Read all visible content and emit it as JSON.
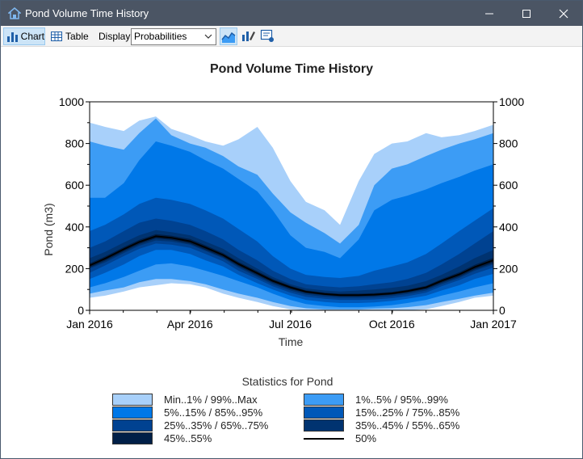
{
  "window": {
    "title": "Pond Volume Time History"
  },
  "toolbar": {
    "chart_label": "Chart",
    "table_label": "Table",
    "display_label": "Display:",
    "display_value": "Probabilities"
  },
  "chart_data": {
    "type": "area",
    "title": "Pond Volume Time History",
    "xlabel": "Time",
    "ylabel": "Pond (m3)",
    "ylim": [
      0,
      1000
    ],
    "yticks": [
      0,
      200,
      400,
      600,
      800,
      1000
    ],
    "ytick_labels": [
      "0",
      "200",
      "400",
      "600",
      "800",
      "1000"
    ],
    "xlim": [
      "2016-01-01",
      "2017-01-01"
    ],
    "xtick_dates": [
      "2016-01-01",
      "2016-04-01",
      "2016-07-01",
      "2016-10-01",
      "2017-01-01"
    ],
    "xtick_labels": [
      "Jan 2016",
      "Apr 2016",
      "Jul 2016",
      "Oct 2016",
      "Jan 2017"
    ],
    "grid": false,
    "x": [
      "2016-01-01",
      "2016-01-15",
      "2016-02-01",
      "2016-02-15",
      "2016-03-01",
      "2016-03-15",
      "2016-04-01",
      "2016-04-15",
      "2016-05-01",
      "2016-05-15",
      "2016-06-01",
      "2016-06-15",
      "2016-07-01",
      "2016-07-15",
      "2016-08-01",
      "2016-08-15",
      "2016-09-01",
      "2016-09-15",
      "2016-10-01",
      "2016-10-15",
      "2016-11-01",
      "2016-11-15",
      "2016-12-01",
      "2016-12-15",
      "2017-01-01"
    ],
    "bands": [
      {
        "name": "Min..1% / 99%..Max",
        "color": "#a8d0fa",
        "low": [
          60,
          70,
          90,
          110,
          120,
          130,
          125,
          110,
          80,
          60,
          40,
          20,
          5,
          0,
          0,
          0,
          0,
          0,
          0,
          0,
          5,
          20,
          40,
          60,
          70
        ],
        "high": [
          900,
          880,
          860,
          910,
          930,
          870,
          840,
          810,
          790,
          820,
          880,
          780,
          620,
          520,
          480,
          410,
          620,
          750,
          800,
          810,
          850,
          830,
          840,
          860,
          890
        ]
      },
      {
        "name": "1%..5% / 95%..99%",
        "color": "#3c9cf5",
        "low": [
          80,
          95,
          110,
          135,
          150,
          150,
          140,
          125,
          100,
          80,
          60,
          40,
          20,
          10,
          5,
          5,
          5,
          8,
          10,
          15,
          25,
          40,
          55,
          70,
          85
        ],
        "high": [
          810,
          790,
          770,
          850,
          920,
          840,
          800,
          780,
          740,
          690,
          650,
          560,
          470,
          420,
          370,
          320,
          410,
          600,
          680,
          700,
          740,
          770,
          800,
          820,
          850
        ]
      },
      {
        "name": "5%..15% / 85%..95%",
        "color": "#0078e8",
        "low": [
          110,
          130,
          160,
          190,
          220,
          225,
          210,
          190,
          165,
          140,
          110,
          80,
          50,
          30,
          20,
          15,
          15,
          18,
          25,
          35,
          50,
          70,
          90,
          110,
          130
        ],
        "high": [
          540,
          540,
          610,
          720,
          810,
          790,
          760,
          720,
          680,
          630,
          570,
          480,
          360,
          300,
          280,
          250,
          340,
          480,
          530,
          550,
          580,
          610,
          640,
          670,
          700
        ]
      },
      {
        "name": "15%..25% / 75%..85%",
        "color": "#0058b8",
        "low": [
          150,
          180,
          220,
          260,
          290,
          290,
          270,
          240,
          210,
          170,
          130,
          100,
          70,
          50,
          40,
          35,
          35,
          38,
          45,
          55,
          70,
          95,
          120,
          150,
          175
        ],
        "high": [
          380,
          410,
          460,
          510,
          540,
          530,
          510,
          480,
          440,
          390,
          330,
          260,
          200,
          170,
          160,
          155,
          165,
          190,
          210,
          230,
          270,
          320,
          380,
          430,
          490
        ]
      },
      {
        "name": "25%..35% / 65%..75%",
        "color": "#004291",
        "low": [
          180,
          215,
          260,
          295,
          320,
          315,
          300,
          270,
          235,
          190,
          150,
          115,
          85,
          65,
          55,
          50,
          50,
          52,
          58,
          68,
          85,
          115,
          145,
          175,
          205
        ],
        "high": [
          300,
          330,
          380,
          420,
          440,
          430,
          410,
          380,
          340,
          290,
          240,
          190,
          150,
          125,
          115,
          110,
          115,
          125,
          135,
          150,
          180,
          220,
          270,
          320,
          380
        ]
      },
      {
        "name": "35%..45% / 55%..65%",
        "color": "#003370",
        "low": [
          200,
          230,
          275,
          310,
          335,
          330,
          315,
          285,
          250,
          205,
          160,
          125,
          95,
          75,
          65,
          60,
          60,
          62,
          68,
          78,
          95,
          125,
          155,
          190,
          220
        ],
        "high": [
          250,
          280,
          325,
          360,
          385,
          375,
          360,
          330,
          295,
          250,
          200,
          160,
          125,
          105,
          95,
          90,
          95,
          100,
          108,
          118,
          140,
          170,
          210,
          250,
          290
        ]
      },
      {
        "name": "45%..55%",
        "color": "#001f47",
        "low": [
          205,
          238,
          283,
          318,
          345,
          338,
          320,
          290,
          255,
          212,
          168,
          132,
          102,
          82,
          72,
          67,
          67,
          69,
          75,
          85,
          102,
          132,
          162,
          196,
          228
        ],
        "high": [
          225,
          258,
          303,
          338,
          365,
          358,
          342,
          312,
          275,
          232,
          188,
          150,
          118,
          96,
          85,
          80,
          80,
          82,
          88,
          99,
          118,
          150,
          182,
          218,
          252
        ]
      }
    ],
    "median": {
      "name": "50%",
      "color": "#000000",
      "values": [
        215,
        248,
        293,
        328,
        355,
        348,
        331,
        301,
        265,
        222,
        178,
        141,
        110,
        89,
        78,
        73,
        73,
        75,
        81,
        92,
        110,
        141,
        172,
        207,
        240
      ]
    },
    "legend": {
      "title": "Statistics for Pond",
      "placement": "bottom",
      "items": [
        {
          "label": "Min..1% / 99%..Max",
          "color": "#a8d0fa"
        },
        {
          "label": "1%..5% / 95%..99%",
          "color": "#3c9cf5"
        },
        {
          "label": "5%..15% / 85%..95%",
          "color": "#0078e8"
        },
        {
          "label": "15%..25% / 75%..85%",
          "color": "#0058b8"
        },
        {
          "label": "25%..35% / 65%..75%",
          "color": "#004291"
        },
        {
          "label": "35%..45% / 55%..65%",
          "color": "#003370"
        },
        {
          "label": "45%..55%",
          "color": "#001f47"
        },
        {
          "label": "50%",
          "color": "#000000"
        }
      ]
    }
  }
}
